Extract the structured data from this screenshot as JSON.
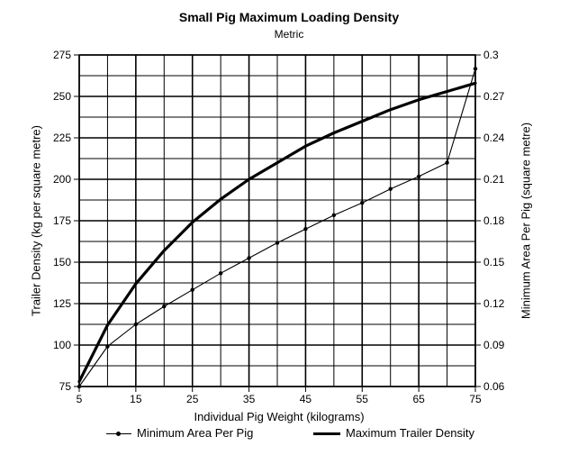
{
  "chart_data": {
    "type": "line",
    "title": "Small Pig Maximum Loading Density",
    "subtitle": "Metric",
    "xlabel": "Individual Pig Weight (kilograms)",
    "ylabel_left": "Trailer Density (kg per square metre)",
    "ylabel_right": "Minimum Area Per Pig (square metre)",
    "x_ticks": [
      5,
      15,
      25,
      35,
      45,
      55,
      65,
      75
    ],
    "x_tick_labels": [
      "5",
      "15",
      "25",
      "35",
      "45",
      "55",
      "65",
      "75"
    ],
    "xlim": [
      5,
      75
    ],
    "left_ticks": [
      75,
      100,
      125,
      150,
      175,
      200,
      225,
      250,
      275
    ],
    "left_tick_labels": [
      "75",
      "100",
      "125",
      "150",
      "175",
      "200",
      "225",
      "250",
      "275"
    ],
    "ylim_left": [
      75,
      275
    ],
    "right_ticks": [
      0.06,
      0.09,
      0.12,
      0.15,
      0.18,
      0.21,
      0.24,
      0.27,
      0.3
    ],
    "right_tick_labels": [
      "0.06",
      "0.09",
      "0.12",
      "0.15",
      "0.18",
      "0.21",
      "0.24",
      "0.27",
      "0.3"
    ],
    "ylim_right": [
      0.06,
      0.3
    ],
    "grid": true,
    "legend_position": "bottom",
    "series": [
      {
        "name": "Minimum Area Per Pig",
        "axis": "right",
        "style": "thin-with-markers",
        "x": [
          5,
          10,
          15,
          20,
          25,
          30,
          35,
          40,
          45,
          50,
          55,
          60,
          65,
          70,
          75
        ],
        "y": [
          0.06,
          0.089,
          0.105,
          0.118,
          0.13,
          0.142,
          0.153,
          0.164,
          0.174,
          0.184,
          0.193,
          0.203,
          0.212,
          0.222,
          0.29
        ]
      },
      {
        "name": "Maximum Trailer Density",
        "axis": "left",
        "style": "thick",
        "x": [
          5,
          10,
          15,
          20,
          25,
          30,
          35,
          40,
          45,
          50,
          55,
          60,
          65,
          70,
          75
        ],
        "y": [
          78,
          112,
          137,
          157,
          174,
          188,
          200,
          210,
          220,
          228,
          235,
          242,
          248,
          253,
          258
        ]
      }
    ]
  }
}
